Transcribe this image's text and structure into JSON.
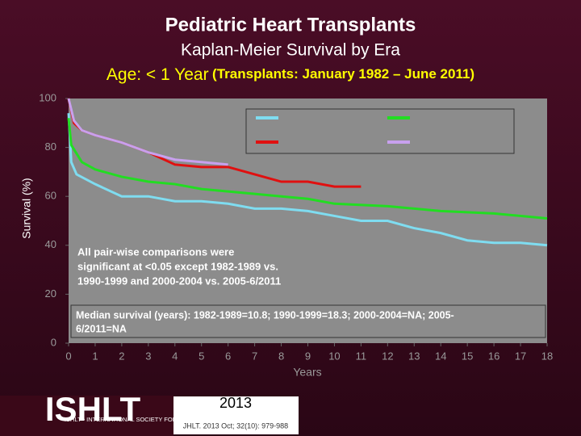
{
  "chart_data": {
    "type": "line",
    "title": "Pediatric Heart Transplants",
    "subtitle": "Kaplan-Meier Survival by Era",
    "age_label": "Age: < 1 Year",
    "period_label": "(Transplants: January 1982 – June 2011)",
    "ylabel": "Survival (%)",
    "xlabel": "Years",
    "xlim": [
      0,
      18
    ],
    "xticks": [
      0,
      1,
      2,
      3,
      4,
      5,
      6,
      7,
      8,
      9,
      10,
      11,
      12,
      13,
      14,
      15,
      16,
      17,
      18
    ],
    "ylim": [
      0,
      100
    ],
    "yticks": [
      0,
      20,
      40,
      60,
      80,
      100
    ],
    "series": [
      {
        "color": "#7fdcf0",
        "x": [
          0,
          0.1,
          0.3,
          1,
          2,
          3,
          4,
          5,
          6,
          7,
          8,
          9,
          10,
          11,
          12,
          13,
          14,
          15,
          16,
          17,
          18
        ],
        "values": [
          94,
          74,
          69,
          65,
          60,
          60,
          58,
          58,
          57,
          55,
          55,
          54,
          52,
          50,
          50,
          47,
          45,
          42,
          41,
          41,
          40
        ]
      },
      {
        "color": "#22dd22",
        "x": [
          0,
          0.1,
          0.5,
          1,
          2,
          3,
          4,
          5,
          6,
          7,
          8,
          9,
          10,
          12,
          14,
          16,
          18
        ],
        "values": [
          92,
          81,
          74,
          71,
          68,
          66,
          65,
          63,
          62,
          61,
          60,
          59,
          57,
          56,
          54,
          53,
          51
        ]
      },
      {
        "color": "#e01010",
        "x": [
          0,
          0.2,
          0.5,
          1,
          2,
          3,
          4,
          5,
          6,
          7,
          8,
          9,
          10,
          11
        ],
        "values": [
          100,
          90,
          87,
          85,
          82,
          78,
          73,
          72,
          72,
          69,
          66,
          66,
          64,
          64
        ]
      },
      {
        "color": "#c8a0ee",
        "x": [
          0,
          0.2,
          0.5,
          1,
          2,
          3,
          4,
          5,
          6
        ],
        "values": [
          100,
          91,
          87,
          85,
          82,
          78,
          75,
          74,
          73
        ]
      }
    ],
    "annotations": [
      {
        "lines": [
          "All pair-wise comparisons were",
          "significant at <0.05 except 1982-1989 vs.",
          "1990-1999 and 2000-2004 vs. 2005-6/2011"
        ]
      },
      {
        "lines": [
          "Median survival (years): 1982-1989=10.8; 1990-1999=18.3; 2000-2004=NA; 2005-",
          "6/2011=NA"
        ]
      }
    ]
  },
  "footer": {
    "logo": "ISHLT",
    "society": "ISHLT • INTERNATIONAL SOCIETY FOR HEART AND LUNG TRANSPLANTATION",
    "year": "2013",
    "citation": "JHLT. 2013 Oct; 32(10): 979-988"
  }
}
